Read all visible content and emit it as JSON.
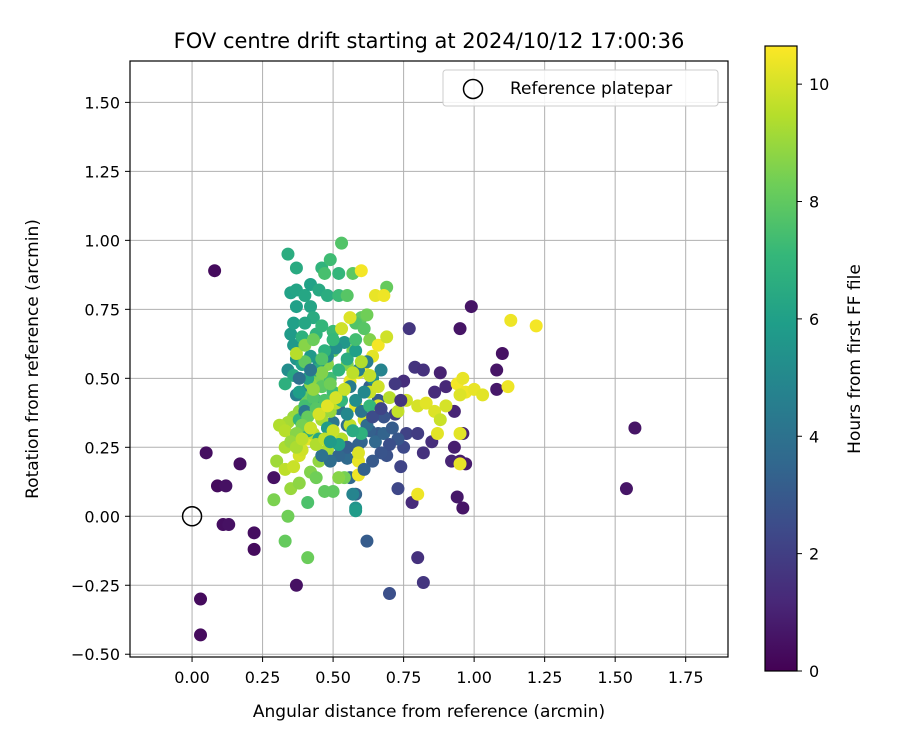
{
  "chart_data": {
    "type": "scatter",
    "title": "FOV centre drift starting at 2024/10/12 17:00:36",
    "xlabel": "Angular distance from reference (arcmin)",
    "ylabel": "Rotation from reference (arcmin)",
    "xlim": [
      -0.22,
      1.9
    ],
    "ylim": [
      -0.51,
      1.65
    ],
    "xticks": [
      "0.00",
      "0.25",
      "0.50",
      "0.75",
      "1.00",
      "1.25",
      "1.50",
      "1.75"
    ],
    "yticks": [
      "−0.50",
      "−0.25",
      "0.00",
      "0.25",
      "0.50",
      "0.75",
      "1.00",
      "1.25",
      "1.50"
    ],
    "grid": true,
    "legend": {
      "placement": "top-right",
      "entries": [
        {
          "label": "Reference platepar",
          "marker": "open-circle"
        }
      ]
    },
    "reference_point": {
      "x": 0.0,
      "y": 0.0
    },
    "colorbar": {
      "label": "Hours from first FF file",
      "min": 0,
      "max": 10.65,
      "ticks": [
        "0",
        "2",
        "4",
        "6",
        "8",
        "10"
      ],
      "colormap": "viridis"
    },
    "point_columns": [
      "x",
      "y",
      "hours"
    ],
    "points": [
      [
        0.08,
        0.89,
        0.3
      ],
      [
        0.05,
        0.23,
        0.4
      ],
      [
        0.09,
        0.11,
        0.3
      ],
      [
        0.12,
        0.11,
        0.5
      ],
      [
        0.17,
        0.19,
        0.4
      ],
      [
        0.11,
        -0.03,
        0.4
      ],
      [
        0.13,
        -0.03,
        0.5
      ],
      [
        0.22,
        -0.06,
        0.4
      ],
      [
        0.22,
        -0.12,
        0.3
      ],
      [
        0.03,
        -0.3,
        0.3
      ],
      [
        0.03,
        -0.43,
        0.3
      ],
      [
        0.29,
        0.14,
        0.5
      ],
      [
        0.37,
        -0.25,
        0.5
      ],
      [
        0.99,
        0.76,
        0.6
      ],
      [
        0.95,
        0.68,
        0.6
      ],
      [
        1.1,
        0.59,
        0.5
      ],
      [
        1.08,
        0.53,
        0.6
      ],
      [
        1.08,
        0.46,
        0.7
      ],
      [
        1.57,
        0.32,
        0.6
      ],
      [
        1.54,
        0.1,
        0.6
      ],
      [
        0.97,
        0.19,
        0.8
      ],
      [
        0.95,
        0.2,
        0.8
      ],
      [
        0.94,
        0.07,
        0.7
      ],
      [
        0.96,
        0.03,
        0.6
      ],
      [
        0.93,
        0.25,
        0.9
      ],
      [
        0.96,
        0.3,
        1.0
      ],
      [
        0.88,
        0.52,
        1.0
      ],
      [
        0.9,
        0.47,
        1.2
      ],
      [
        0.86,
        0.45,
        1.3
      ],
      [
        0.93,
        0.38,
        1.1
      ],
      [
        0.92,
        0.2,
        1.1
      ],
      [
        0.77,
        0.68,
        1.7
      ],
      [
        0.79,
        0.54,
        1.6
      ],
      [
        0.82,
        0.53,
        1.5
      ],
      [
        0.75,
        0.49,
        1.4
      ],
      [
        0.82,
        0.23,
        1.5
      ],
      [
        0.85,
        0.27,
        1.4
      ],
      [
        0.8,
        -0.15,
        1.5
      ],
      [
        0.82,
        -0.24,
        1.7
      ],
      [
        0.78,
        0.05,
        1.3
      ],
      [
        0.72,
        0.37,
        2.0
      ],
      [
        0.76,
        0.3,
        2.1
      ],
      [
        0.8,
        0.3,
        1.9
      ],
      [
        0.74,
        0.18,
        2.2
      ],
      [
        0.75,
        0.25,
        2.4
      ],
      [
        0.73,
        0.1,
        2.3
      ],
      [
        0.7,
        -0.28,
        2.6
      ],
      [
        0.62,
        -0.09,
        3.1
      ],
      [
        0.69,
        0.22,
        2.7
      ],
      [
        0.66,
        0.3,
        3.0
      ],
      [
        0.63,
        0.31,
        3.3
      ],
      [
        0.6,
        0.27,
        3.5
      ],
      [
        0.55,
        0.21,
        3.7
      ],
      [
        0.58,
        0.08,
        3.4
      ],
      [
        0.63,
        0.47,
        3.2
      ],
      [
        0.66,
        0.42,
        3.0
      ],
      [
        0.68,
        0.36,
        2.8
      ],
      [
        0.55,
        0.33,
        3.9
      ],
      [
        0.5,
        0.34,
        4.2
      ],
      [
        0.47,
        0.38,
        4.4
      ],
      [
        0.44,
        0.42,
        4.7
      ],
      [
        0.41,
        0.46,
        4.9
      ],
      [
        0.44,
        0.5,
        4.6
      ],
      [
        0.47,
        0.55,
        4.3
      ],
      [
        0.52,
        0.39,
        4.0
      ],
      [
        0.56,
        0.14,
        3.6
      ],
      [
        0.57,
        0.08,
        4.8
      ],
      [
        0.58,
        0.03,
        5.5
      ],
      [
        0.58,
        0.02,
        5.8
      ],
      [
        0.59,
        0.26,
        3.4
      ],
      [
        0.34,
        0.53,
        5.2
      ],
      [
        0.37,
        0.57,
        5.5
      ],
      [
        0.36,
        0.62,
        5.7
      ],
      [
        0.35,
        0.66,
        5.8
      ],
      [
        0.36,
        0.7,
        6.0
      ],
      [
        0.37,
        0.76,
        6.0
      ],
      [
        0.35,
        0.81,
        6.1
      ],
      [
        0.37,
        0.82,
        6.2
      ],
      [
        0.4,
        0.8,
        6.3
      ],
      [
        0.42,
        0.84,
        6.1
      ],
      [
        0.45,
        0.82,
        6.4
      ],
      [
        0.48,
        0.8,
        6.6
      ],
      [
        0.42,
        0.76,
        6.2
      ],
      [
        0.43,
        0.72,
        6.5
      ],
      [
        0.4,
        0.7,
        6.3
      ],
      [
        0.39,
        0.65,
        6.8
      ],
      [
        0.44,
        0.66,
        6.9
      ],
      [
        0.46,
        0.69,
        7.0
      ],
      [
        0.5,
        0.67,
        7.2
      ],
      [
        0.34,
        0.95,
        6.6
      ],
      [
        0.37,
        0.9,
        6.5
      ],
      [
        0.46,
        0.9,
        6.9
      ],
      [
        0.49,
        0.93,
        7.3
      ],
      [
        0.47,
        0.88,
        7.5
      ],
      [
        0.52,
        0.88,
        7.0
      ],
      [
        0.52,
        0.8,
        7.2
      ],
      [
        0.55,
        0.8,
        7.8
      ],
      [
        0.53,
        0.99,
        7.7
      ],
      [
        0.57,
        0.88,
        7.9
      ],
      [
        0.6,
        0.72,
        8.0
      ],
      [
        0.62,
        0.73,
        8.3
      ],
      [
        0.58,
        0.7,
        7.7
      ],
      [
        0.69,
        0.83,
        8.1
      ],
      [
        0.63,
        0.64,
        8.6
      ],
      [
        0.57,
        0.6,
        8.4
      ],
      [
        0.55,
        0.55,
        8.5
      ],
      [
        0.5,
        0.6,
        8.1
      ],
      [
        0.48,
        0.55,
        8.7
      ],
      [
        0.45,
        0.5,
        8.5
      ],
      [
        0.42,
        0.48,
        8.8
      ],
      [
        0.4,
        0.43,
        8.2
      ],
      [
        0.38,
        0.38,
        8.9
      ],
      [
        0.36,
        0.36,
        9.0
      ],
      [
        0.34,
        0.34,
        9.2
      ],
      [
        0.31,
        0.33,
        9.4
      ],
      [
        0.33,
        0.31,
        9.5
      ],
      [
        0.36,
        0.28,
        9.7
      ],
      [
        0.33,
        0.25,
        9.3
      ],
      [
        0.3,
        0.2,
        9.1
      ],
      [
        0.33,
        0.17,
        9.6
      ],
      [
        0.36,
        0.18,
        9.8
      ],
      [
        0.38,
        0.22,
        10.0
      ],
      [
        0.35,
        0.1,
        9.0
      ],
      [
        0.29,
        0.06,
        8.5
      ],
      [
        0.34,
        0.0,
        8.3
      ],
      [
        0.33,
        -0.09,
        8.1
      ],
      [
        0.41,
        -0.15,
        8.2
      ],
      [
        0.5,
        0.09,
        8.0
      ],
      [
        0.54,
        0.14,
        8.4
      ],
      [
        0.39,
        0.24,
        9.9
      ],
      [
        0.41,
        0.28,
        10.2
      ],
      [
        0.43,
        0.3,
        9.5
      ],
      [
        0.46,
        0.35,
        9.2
      ],
      [
        0.49,
        0.38,
        9.0
      ],
      [
        0.51,
        0.41,
        9.6
      ],
      [
        0.53,
        0.45,
        9.8
      ],
      [
        0.56,
        0.49,
        10.3
      ],
      [
        0.59,
        0.52,
        10.1
      ],
      [
        0.61,
        0.55,
        10.4
      ],
      [
        0.64,
        0.58,
        10.2
      ],
      [
        0.66,
        0.62,
        10.5
      ],
      [
        0.69,
        0.65,
        9.9
      ],
      [
        0.65,
        0.8,
        10.3
      ],
      [
        0.68,
        0.8,
        10.4
      ],
      [
        0.6,
        0.89,
        10.5
      ],
      [
        0.56,
        0.72,
        10.1
      ],
      [
        0.53,
        0.68,
        9.9
      ],
      [
        0.58,
        0.4,
        10.3
      ],
      [
        0.61,
        0.35,
        10.0
      ],
      [
        0.63,
        0.45,
        9.8
      ],
      [
        0.66,
        0.4,
        10.1
      ],
      [
        0.7,
        0.43,
        9.5
      ],
      [
        0.73,
        0.38,
        9.7
      ],
      [
        0.76,
        0.42,
        9.9
      ],
      [
        0.8,
        0.4,
        10.0
      ],
      [
        0.83,
        0.41,
        10.2
      ],
      [
        0.86,
        0.38,
        10.1
      ],
      [
        0.88,
        0.35,
        9.8
      ],
      [
        0.9,
        0.4,
        10.0
      ],
      [
        0.94,
        0.48,
        10.5
      ],
      [
        0.97,
        0.45,
        10.4
      ],
      [
        1.0,
        0.46,
        10.3
      ],
      [
        1.03,
        0.44,
        10.2
      ],
      [
        1.13,
        0.71,
        10.4
      ],
      [
        1.22,
        0.69,
        10.5
      ],
      [
        1.12,
        0.47,
        10.4
      ],
      [
        0.96,
        0.5,
        10.3
      ],
      [
        0.95,
        0.44,
        10.1
      ],
      [
        0.95,
        0.3,
        10.2
      ],
      [
        0.95,
        0.19,
        10.3
      ],
      [
        0.87,
        0.3,
        10.2
      ],
      [
        0.8,
        0.08,
        10.4
      ],
      [
        0.59,
        0.15,
        10.4
      ],
      [
        0.59,
        0.2,
        10.3
      ],
      [
        0.59,
        0.23,
        10.1
      ],
      [
        0.56,
        0.33,
        9.7
      ],
      [
        0.53,
        0.28,
        9.5
      ],
      [
        0.48,
        0.24,
        9.3
      ],
      [
        0.45,
        0.2,
        8.9
      ],
      [
        0.42,
        0.16,
        8.6
      ],
      [
        0.38,
        0.12,
        8.8
      ],
      [
        0.41,
        0.05,
        7.6
      ],
      [
        0.47,
        0.09,
        8.0
      ],
      [
        0.44,
        0.14,
        8.3
      ],
      [
        0.52,
        0.14,
        8.7
      ],
      [
        0.48,
        0.32,
        5.8
      ],
      [
        0.45,
        0.28,
        6.3
      ],
      [
        0.41,
        0.31,
        6.6
      ],
      [
        0.38,
        0.35,
        7.0
      ],
      [
        0.4,
        0.4,
        7.4
      ],
      [
        0.43,
        0.43,
        7.7
      ],
      [
        0.46,
        0.47,
        7.9
      ],
      [
        0.49,
        0.5,
        7.3
      ],
      [
        0.52,
        0.53,
        6.9
      ],
      [
        0.55,
        0.57,
        6.5
      ],
      [
        0.58,
        0.6,
        6.0
      ],
      [
        0.54,
        0.63,
        5.6
      ],
      [
        0.51,
        0.61,
        5.3
      ],
      [
        0.48,
        0.58,
        5.1
      ],
      [
        0.45,
        0.56,
        5.4
      ],
      [
        0.42,
        0.58,
        5.7
      ],
      [
        0.39,
        0.55,
        6.1
      ],
      [
        0.36,
        0.51,
        6.4
      ],
      [
        0.33,
        0.48,
        6.7
      ],
      [
        0.37,
        0.44,
        4.6
      ],
      [
        0.4,
        0.38,
        4.3
      ],
      [
        0.6,
        0.38,
        4.1
      ],
      [
        0.62,
        0.33,
        3.8
      ],
      [
        0.65,
        0.27,
        3.6
      ],
      [
        0.68,
        0.3,
        3.4
      ],
      [
        0.71,
        0.32,
        3.1
      ],
      [
        0.73,
        0.28,
        2.9
      ],
      [
        0.7,
        0.26,
        2.6
      ],
      [
        0.67,
        0.23,
        2.8
      ],
      [
        0.64,
        0.2,
        3.0
      ],
      [
        0.61,
        0.17,
        3.3
      ],
      [
        0.55,
        0.25,
        3.2
      ],
      [
        0.52,
        0.22,
        3.5
      ],
      [
        0.49,
        0.2,
        3.8
      ],
      [
        0.46,
        0.22,
        4.0
      ],
      [
        0.55,
        0.37,
        5.0
      ],
      [
        0.58,
        0.42,
        5.2
      ],
      [
        0.61,
        0.45,
        5.0
      ],
      [
        0.64,
        0.5,
        5.4
      ],
      [
        0.67,
        0.53,
        4.8
      ],
      [
        0.62,
        0.56,
        4.5
      ],
      [
        0.59,
        0.53,
        4.7
      ],
      [
        0.56,
        0.47,
        4.4
      ],
      [
        0.38,
        0.45,
        5.9
      ],
      [
        0.41,
        0.5,
        6.2
      ],
      [
        0.44,
        0.53,
        6.5
      ],
      [
        0.47,
        0.6,
        6.8
      ],
      [
        0.5,
        0.64,
        7.1
      ],
      [
        0.53,
        0.42,
        7.0
      ],
      [
        0.5,
        0.45,
        7.3
      ],
      [
        0.47,
        0.42,
        7.6
      ],
      [
        0.44,
        0.39,
        7.8
      ],
      [
        0.41,
        0.36,
        8.1
      ],
      [
        0.39,
        0.33,
        8.4
      ],
      [
        0.37,
        0.3,
        8.7
      ],
      [
        0.35,
        0.27,
        9.0
      ],
      [
        0.37,
        0.25,
        9.3
      ],
      [
        0.39,
        0.28,
        9.6
      ],
      [
        0.42,
        0.32,
        9.8
      ],
      [
        0.45,
        0.37,
        10.0
      ],
      [
        0.48,
        0.4,
        10.2
      ],
      [
        0.51,
        0.43,
        10.0
      ],
      [
        0.54,
        0.46,
        9.8
      ],
      [
        0.57,
        0.52,
        9.6
      ],
      [
        0.6,
        0.56,
        9.4
      ],
      [
        0.63,
        0.51,
        9.7
      ],
      [
        0.66,
        0.47,
        9.9
      ],
      [
        0.44,
        0.26,
        9.4
      ],
      [
        0.47,
        0.28,
        9.6
      ],
      [
        0.5,
        0.31,
        9.8
      ],
      [
        0.43,
        0.46,
        8.9
      ],
      [
        0.46,
        0.52,
        8.6
      ],
      [
        0.49,
        0.48,
        8.3
      ],
      [
        0.4,
        0.56,
        8.0
      ],
      [
        0.37,
        0.59,
        9.5
      ],
      [
        0.4,
        0.62,
        8.7
      ],
      [
        0.43,
        0.64,
        8.2
      ],
      [
        0.46,
        0.57,
        7.7
      ],
      [
        0.58,
        0.64,
        7.4
      ],
      [
        0.61,
        0.68,
        7.8
      ],
      [
        0.63,
        0.4,
        7.1
      ],
      [
        0.6,
        0.3,
        6.8
      ],
      [
        0.57,
        0.31,
        6.5
      ],
      [
        0.52,
        0.26,
        6.1
      ],
      [
        0.49,
        0.27,
        5.8
      ],
      [
        0.38,
        0.5,
        3.9
      ],
      [
        0.42,
        0.53,
        4.2
      ],
      [
        0.64,
        0.36,
        2.5
      ],
      [
        0.67,
        0.39,
        2.2
      ],
      [
        0.72,
        0.48,
        1.8
      ],
      [
        0.74,
        0.42,
        1.6
      ]
    ]
  }
}
